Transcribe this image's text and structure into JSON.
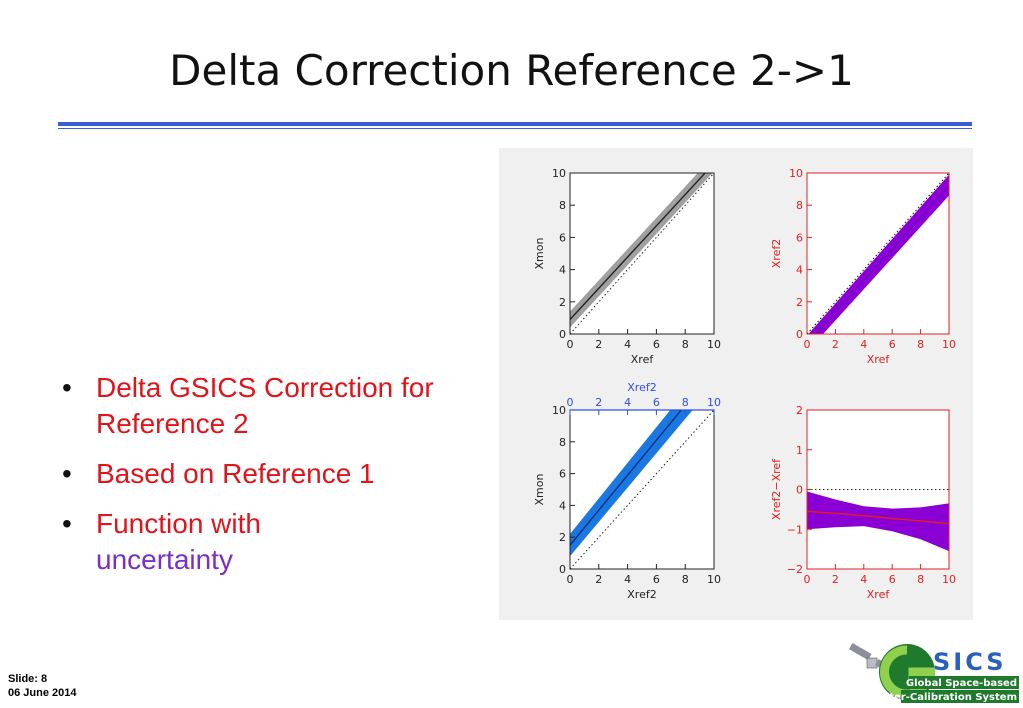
{
  "slide": {
    "title": "Delta Correction Reference 2->1",
    "bullets": [
      {
        "text": "Delta GSICS Correction for Reference 2"
      },
      {
        "text": "Based on Reference 1"
      },
      {
        "text": "Function with",
        "extra": "uncertainty"
      }
    ],
    "footer": {
      "slide_label": "Slide: 8",
      "date": "06 June 2014"
    },
    "logo": {
      "mark": "SICS",
      "line1": "Global Space-based",
      "line2": "Inter-Calibration System"
    }
  },
  "chart_data": [
    {
      "type": "line",
      "panel": "top-left",
      "xlabel": "Xref",
      "ylabel": "Xmon",
      "xlim": [
        0,
        10
      ],
      "ylim": [
        0,
        10
      ],
      "xticks": [
        "0",
        "2",
        "4",
        "6",
        "8",
        "10"
      ],
      "yticks": [
        "0",
        "2",
        "4",
        "6",
        "8",
        "10"
      ],
      "series": [
        {
          "x": [
            0,
            10
          ],
          "y": [
            0.9,
            10.6
          ],
          "band": [
            [
              0.4,
              1.4
            ],
            [
              10.1,
              11.1
            ]
          ],
          "color": "#222222",
          "band_color": "#a0a0a0"
        }
      ],
      "reference_line": "dotted 1:1"
    },
    {
      "type": "line",
      "panel": "top-right",
      "xlabel": "Xref",
      "ylabel": "Xref2",
      "xlim": [
        0,
        10
      ],
      "ylim": [
        0,
        10
      ],
      "xticks": [
        "0",
        "2",
        "4",
        "6",
        "8",
        "10"
      ],
      "yticks": [
        "0",
        "2",
        "4",
        "6",
        "8",
        "10"
      ],
      "series": [
        {
          "x": [
            0,
            10
          ],
          "y": [
            -0.6,
            9.2
          ],
          "band": [
            [
              -1.1,
              -0.1
            ],
            [
              8.6,
              9.9
            ]
          ],
          "color": "#7a00c8",
          "band_color": "#8a00d4"
        }
      ],
      "reference_line": "dotted 1:1",
      "axis_color": "#e02020"
    },
    {
      "type": "line",
      "panel": "bottom-left",
      "xlabel": "Xref2",
      "ylabel": "Xmon",
      "xlim": [
        0,
        10
      ],
      "ylim": [
        0,
        10
      ],
      "xticks": [
        "0",
        "2",
        "4",
        "6",
        "8",
        "10"
      ],
      "yticks": [
        "0",
        "2",
        "4",
        "6",
        "8",
        "10"
      ],
      "series": [
        {
          "x": [
            0,
            10
          ],
          "y": [
            1.5,
            12.5
          ],
          "band": [
            [
              0.8,
              2.2
            ],
            [
              11.6,
              13.4
            ]
          ],
          "color": "#003080",
          "band_color": "#1a78e0"
        }
      ],
      "reference_line": "dotted 1:1",
      "top_axis_color": "#2f4fe0"
    },
    {
      "type": "line",
      "panel": "bottom-right",
      "xlabel": "Xref",
      "ylabel": "Xref2−Xref",
      "xlim": [
        0,
        10
      ],
      "ylim": [
        -2,
        2
      ],
      "xticks": [
        "0",
        "2",
        "4",
        "6",
        "8",
        "10"
      ],
      "yticks": [
        "−2",
        "−1",
        "0",
        "1",
        "2"
      ],
      "series": [
        {
          "x": [
            0,
            2,
            4,
            6,
            8,
            10
          ],
          "y": [
            -0.55,
            -0.6,
            -0.66,
            -0.73,
            -0.79,
            -0.86
          ],
          "upper": [
            -0.05,
            -0.25,
            -0.42,
            -0.48,
            -0.45,
            -0.35
          ],
          "lower": [
            -1.0,
            -0.95,
            -0.92,
            -1.05,
            -1.25,
            -1.55
          ],
          "color": "#e02020",
          "band_color": "#8a00d4"
        }
      ],
      "reference_line": "dotted y=0",
      "axis_color": "#e02020"
    }
  ]
}
